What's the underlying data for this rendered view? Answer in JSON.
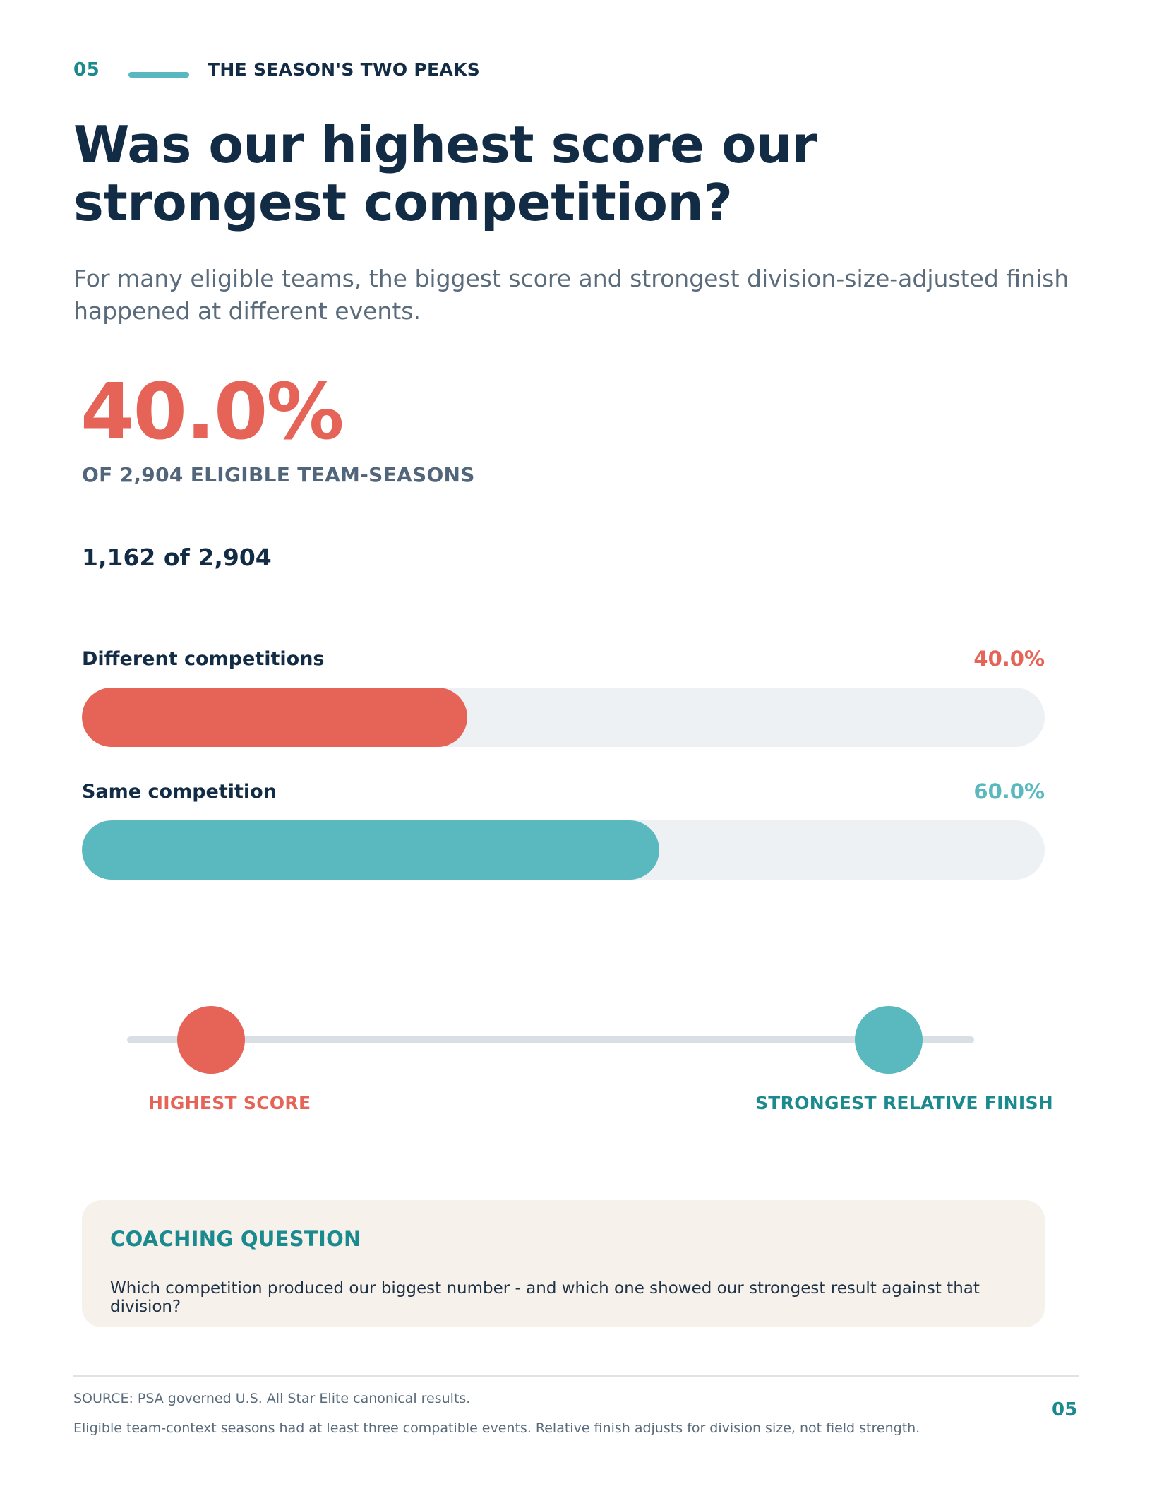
{
  "header": {
    "section_number": "05",
    "section_title": "THE SEASON'S TWO PEAKS"
  },
  "headline": "Was our highest score our strongest competition?",
  "subtitle": "For many eligible teams, the biggest score and strongest division-size-adjusted finish happened at different events.",
  "stat": {
    "value": "40.0%",
    "caption": "OF 2,904 ELIGIBLE TEAM-SEASONS",
    "count_text": "1,162 of 2,904"
  },
  "bars": [
    {
      "label": "Different competitions",
      "percent_text": "40.0%",
      "value": 40.0,
      "color": "#e66357"
    },
    {
      "label": "Same competition",
      "percent_text": "60.0%",
      "value": 60.0,
      "color": "#5ab8bf"
    }
  ],
  "peaks": {
    "left_label": "HIGHEST SCORE",
    "right_label": "STRONGEST RELATIVE FINISH",
    "left_color": "#e66357",
    "right_color": "#5ab8bf",
    "right_label_color": "#1b8a8f"
  },
  "coaching": {
    "title": "COACHING QUESTION",
    "text": "Which competition produced our biggest number - and which one showed our strongest result against that division?"
  },
  "footer": {
    "source": "SOURCE: PSA governed U.S. All Star Elite canonical results.",
    "note": "Eligible team-context seasons had at least three compatible events. Relative finish adjusts for division size, not field strength.",
    "page_number": "05"
  }
}
